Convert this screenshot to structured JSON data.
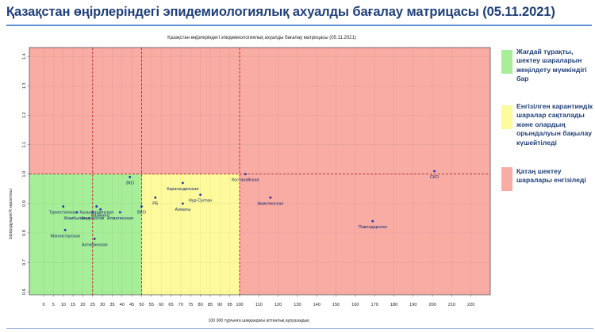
{
  "slide_title": "Қазақстан өңірлеріндегі эпидемиологиялық ахуалды бағалау матрицасы  (05.11.2021)",
  "legend": [
    {
      "label": "Жағдай тұрақты, шектеу шараларын жеңілдету мүмкіндігі бар",
      "color": "#a6ee98"
    },
    {
      "label": "Енгізілген карантиндік шаралар сақталады және олардың орындалуын бақылау күшейтіледі",
      "color": "#fdfa9c"
    },
    {
      "label": "Қатаң шектеу шаралары енгізіледі",
      "color": "#f8aca4"
    }
  ],
  "chart_data": {
    "type": "scatter",
    "title": "Қазақстан өңірлеріндегі эпидемиологиялық ахуалды бағалау матрицасы  (05.11.2021)",
    "xlabel": "100 000 тұрғынға шаққандағы аптанлық аурушаңдық",
    "ylabel": "Ырпродукция R көрсеткіші",
    "xlim": [
      0,
      230
    ],
    "ylim": [
      0.59,
      1.43
    ],
    "xticks": [
      0,
      5,
      10,
      15,
      20,
      25,
      30,
      35,
      40,
      45,
      50,
      55,
      60,
      65,
      70,
      75,
      80,
      85,
      90,
      95,
      100,
      110,
      120,
      130,
      140,
      150,
      160,
      170,
      180,
      190,
      200,
      210,
      220
    ],
    "yticks": [
      0.6,
      0.7,
      0.8,
      0.9,
      1.0,
      1.1,
      1.2,
      1.3,
      1.4
    ],
    "x_axis_breakpoint": 100,
    "zones": [
      {
        "x": [
          0,
          25
        ],
        "y": [
          1.0,
          1.43
        ],
        "color": "#f8aca4"
      },
      {
        "x": [
          25,
          50
        ],
        "y": [
          1.0,
          1.43
        ],
        "color": "#f8aca4"
      },
      {
        "x": [
          50,
          230
        ],
        "y": [
          1.0,
          1.43
        ],
        "color": "#f8aca4"
      },
      {
        "x": [
          0,
          50
        ],
        "y": [
          0.59,
          1.0
        ],
        "color": "#a6ee98"
      },
      {
        "x": [
          50,
          100
        ],
        "y": [
          0.59,
          1.0
        ],
        "color": "#fdfa9c"
      },
      {
        "x": [
          100,
          230
        ],
        "y": [
          0.59,
          1.0
        ],
        "color": "#f8aca4"
      }
    ],
    "threshold_lines": {
      "x": [
        25,
        50,
        100
      ],
      "y": [
        1.0
      ]
    },
    "grid": true,
    "points": [
      {
        "label": "ЗКО",
        "x": 44,
        "y": 0.99
      },
      {
        "label": "Туркестанская",
        "x": 10,
        "y": 0.89
      },
      {
        "label": "Кызылординская",
        "x": 27,
        "y": 0.89
      },
      {
        "label": "Жамбылская",
        "x": 17,
        "y": 0.87
      },
      {
        "label": "Шымкент",
        "x": 29,
        "y": 0.88
      },
      {
        "label": "Атырауская",
        "x": 25,
        "y": 0.87
      },
      {
        "label": "Алматинская",
        "x": 39,
        "y": 0.87
      },
      {
        "label": "Мангистауская",
        "x": 11,
        "y": 0.81
      },
      {
        "label": "Актюбинская",
        "x": 26,
        "y": 0.78
      },
      {
        "label": "ВКО",
        "x": 50,
        "y": 0.89
      },
      {
        "label": "РБ",
        "x": 57,
        "y": 0.92
      },
      {
        "label": "Карагандинская",
        "x": 71,
        "y": 0.97
      },
      {
        "label": "Нур-Султан",
        "x": 80,
        "y": 0.93
      },
      {
        "label": "Алматы",
        "x": 71,
        "y": 0.9
      },
      {
        "label": "Костанайская",
        "x": 103,
        "y": 1.0
      },
      {
        "label": "Акмолинская",
        "x": 116,
        "y": 0.92
      },
      {
        "label": "СКО",
        "x": 201,
        "y": 1.01
      },
      {
        "label": "Павлодарская",
        "x": 169,
        "y": 0.84
      }
    ]
  }
}
